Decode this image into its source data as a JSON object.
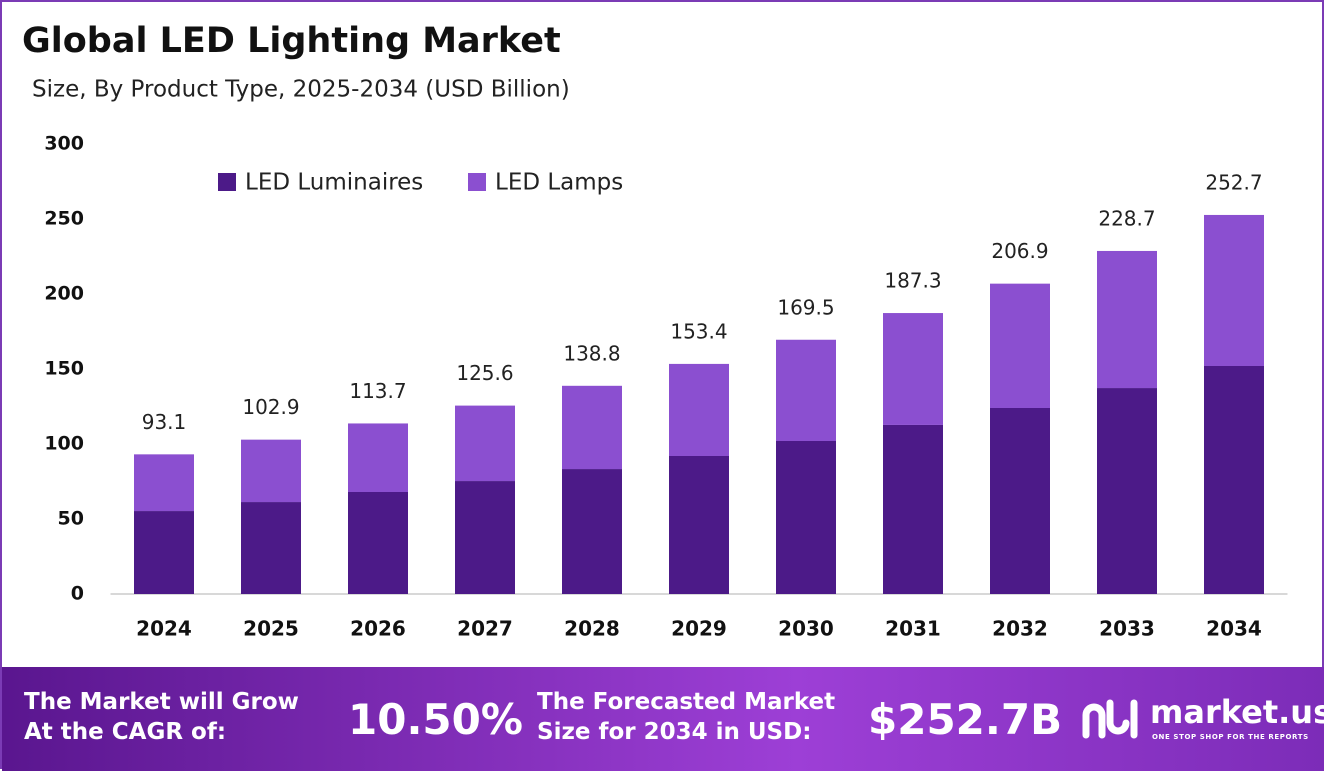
{
  "chart_data": {
    "type": "stacked_bar",
    "title": "Global LED Lighting Market",
    "subtitle": "Size, By Product Type, 2025-2034 (USD Billion)",
    "categories": [
      "2024",
      "2025",
      "2026",
      "2027",
      "2028",
      "2029",
      "2030",
      "2031",
      "2032",
      "2033",
      "2034"
    ],
    "series": [
      {
        "name": "LED Luminaires",
        "color": "#4c1a88",
        "values": [
          55.3,
          61.3,
          68.0,
          75.3,
          83.3,
          92.0,
          102.0,
          112.7,
          124.0,
          137.3,
          152.0
        ]
      },
      {
        "name": "LED Lamps",
        "color": "#8b4fd0",
        "values": [
          37.8,
          41.6,
          45.7,
          50.3,
          55.5,
          61.4,
          67.5,
          74.6,
          82.9,
          91.4,
          100.7
        ]
      }
    ],
    "totals": [
      93.1,
      102.9,
      113.7,
      125.6,
      138.8,
      153.4,
      169.5,
      187.3,
      206.9,
      228.7,
      252.7
    ],
    "ylim": [
      0,
      300
    ],
    "yticks": [
      0,
      50,
      100,
      150,
      200,
      250,
      300
    ],
    "grid": false
  },
  "footer": {
    "cagr_label": "The Market will Grow At the CAGR of:",
    "cagr_value": "10.50%",
    "forecast_label": "The Forecasted Market Size for 2034 in USD:",
    "forecast_value": "$252.7B",
    "logo": "market.us",
    "tagline": "ONE STOP SHOP FOR THE REPORTS"
  }
}
